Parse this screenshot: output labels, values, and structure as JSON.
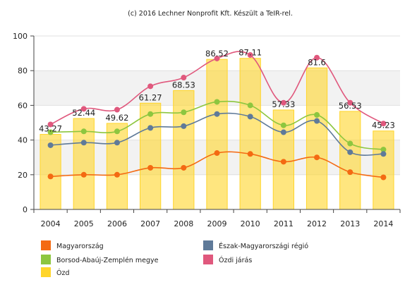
{
  "credit": "(c) 2016 Lechner Nonprofit Kft. Készült a TeIR-rel.",
  "chart_data": {
    "type": "bar",
    "categories": [
      "2004",
      "2005",
      "2006",
      "2007",
      "2008",
      "2009",
      "2010",
      "2011",
      "2012",
      "2013",
      "2014"
    ],
    "ylim": [
      0,
      100
    ],
    "yticks": [
      0,
      20,
      40,
      60,
      80,
      100
    ],
    "grid": true,
    "legend_position": "bottom",
    "bar_series": {
      "name": "Ózd",
      "color": "#ffd52a",
      "values": [
        43.27,
        52.44,
        49.62,
        61.27,
        68.53,
        86.52,
        87.11,
        57.33,
        81.6,
        56.53,
        45.23
      ],
      "labels": [
        "43.27",
        "52.44",
        "49.62",
        "61.27",
        "68.53",
        "86.52",
        "87.11",
        "57.33",
        "81.6",
        "56.53",
        "45.23"
      ]
    },
    "line_series": [
      {
        "name": "Magyarország",
        "color": "#f46a12",
        "values": [
          19,
          20,
          20,
          24,
          24,
          32.5,
          32,
          27.5,
          30,
          21.5,
          18.5
        ]
      },
      {
        "name": "Borsod-Abaúj-Zemplén megye",
        "color": "#8dc63f",
        "values": [
          44.5,
          45,
          45,
          55,
          56,
          62,
          60,
          48.5,
          54.5,
          38,
          34.5
        ]
      },
      {
        "name": "Észak-Magyarországi régió",
        "color": "#5f7a99",
        "values": [
          37,
          38.5,
          38.5,
          47,
          48,
          55,
          53.5,
          44.5,
          51,
          33,
          32
        ]
      },
      {
        "name": "Ózdi járás",
        "color": "#e0587d",
        "values": [
          49,
          58,
          57.5,
          71,
          76,
          87,
          89,
          61.5,
          87.5,
          61.5,
          49.5
        ]
      }
    ],
    "legend": [
      {
        "name": "Magyarország",
        "color": "#f46a12"
      },
      {
        "name": "Észak-Magyarországi régió",
        "color": "#5f7a99"
      },
      {
        "name": "Borsod-Abaúj-Zemplén megye",
        "color": "#8dc63f"
      },
      {
        "name": "Ózdi járás",
        "color": "#e0587d"
      },
      {
        "name": "Ózd",
        "color": "#ffd52a"
      }
    ]
  }
}
